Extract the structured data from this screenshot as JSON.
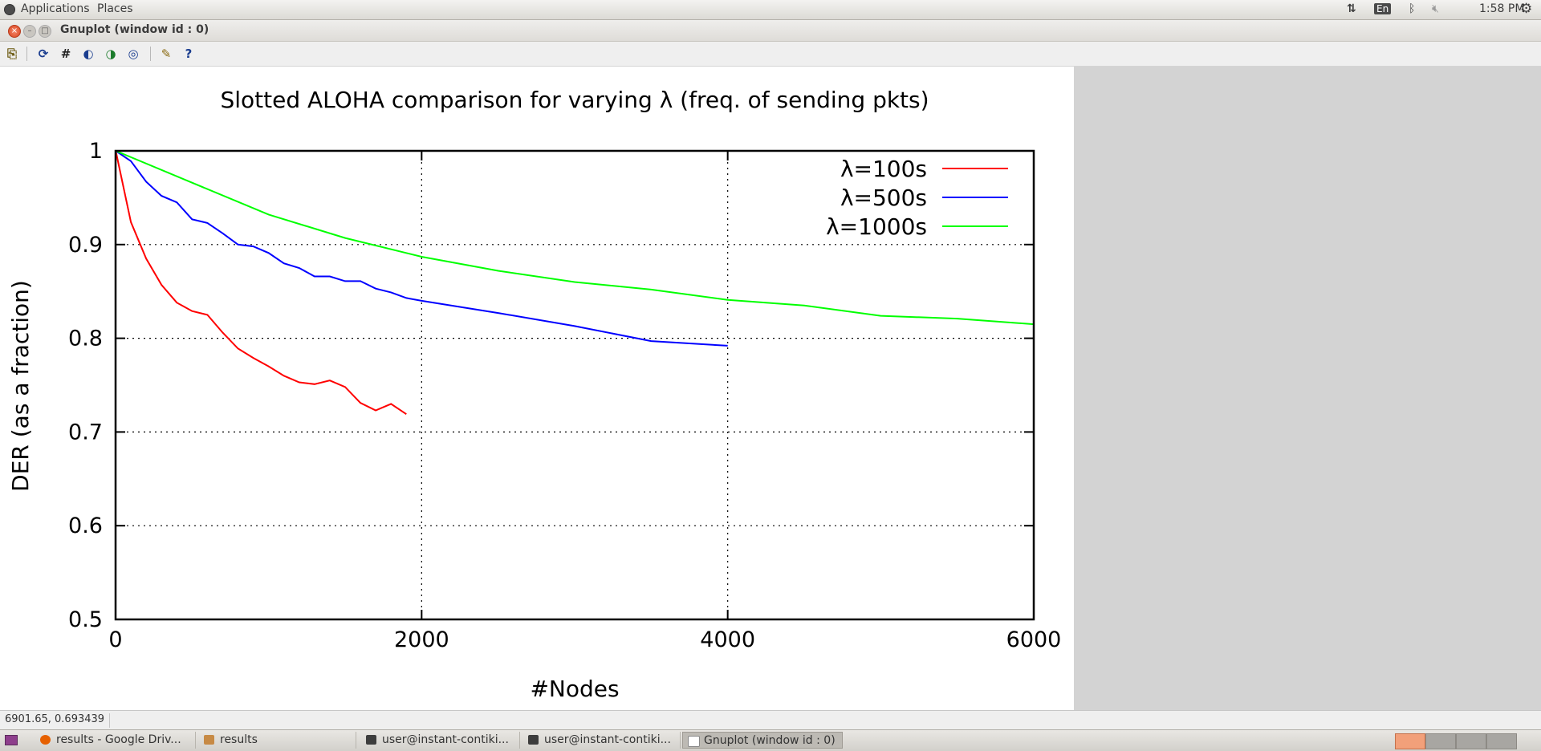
{
  "top_panel": {
    "applications": "Applications",
    "places": "Places",
    "keyboard_layout": "En",
    "clock": "1:58 PM",
    "icons": [
      "network-arrows-icon",
      "bluetooth-icon",
      "volume-muted-icon",
      "gear-icon"
    ]
  },
  "window": {
    "title": "Gnuplot (window id : 0)"
  },
  "toolbar": {
    "icons": [
      "copy-clipboard-icon",
      "replot-icon",
      "grid-icon",
      "zoom-prev-icon",
      "zoom-next-icon",
      "autoscale-icon",
      "options-icon",
      "help-icon"
    ]
  },
  "chart_data": {
    "type": "line",
    "title": "Slotted ALOHA comparison for varying λ (freq. of sending pkts)",
    "xlabel": "#Nodes",
    "ylabel": "DER (as a fraction)",
    "xlim": [
      0,
      6000
    ],
    "ylim": [
      0.5,
      1
    ],
    "x_ticks": [
      "0",
      "2000",
      "4000",
      "6000"
    ],
    "y_ticks": [
      "0.5",
      "0.6",
      "0.7",
      "0.8",
      "0.9",
      "1"
    ],
    "grid": "dotted, major ticks",
    "legend_position": "top-right",
    "series": [
      {
        "name": "λ=100s",
        "color": "#ff0000",
        "x": [
          1,
          100,
          200,
          300,
          400,
          500,
          600,
          700,
          800,
          900,
          1000,
          1100,
          1200,
          1300,
          1400,
          1500,
          1600,
          1700,
          1800,
          1900
        ],
        "y": [
          1.0,
          0.924,
          0.885,
          0.857,
          0.838,
          0.829,
          0.825,
          0.806,
          0.789,
          0.779,
          0.77,
          0.76,
          0.753,
          0.751,
          0.755,
          0.748,
          0.731,
          0.723,
          0.73,
          0.719
        ]
      },
      {
        "name": "λ=500s",
        "color": "#0000ff",
        "x": [
          1,
          100,
          200,
          300,
          400,
          500,
          600,
          700,
          800,
          900,
          1000,
          1100,
          1200,
          1300,
          1400,
          1500,
          1600,
          1700,
          1800,
          1900,
          2000,
          2500,
          3000,
          3500,
          4000
        ],
        "y": [
          1.0,
          0.989,
          0.967,
          0.952,
          0.945,
          0.927,
          0.923,
          0.912,
          0.9,
          0.898,
          0.891,
          0.88,
          0.875,
          0.866,
          0.866,
          0.861,
          0.861,
          0.853,
          0.849,
          0.843,
          0.84,
          0.827,
          0.813,
          0.797,
          0.792
        ]
      },
      {
        "name": "λ=1000s",
        "color": "#00ff00",
        "x": [
          1,
          500,
          1000,
          1500,
          2000,
          2500,
          3000,
          3500,
          4000,
          4500,
          5000,
          5500,
          6000
        ],
        "y": [
          1.0,
          0.966,
          0.932,
          0.907,
          0.887,
          0.872,
          0.86,
          0.852,
          0.841,
          0.835,
          0.824,
          0.821,
          0.815
        ]
      }
    ]
  },
  "status_bar": {
    "coordinates": "6901.65,  0.693439"
  },
  "taskbar": {
    "tasks": [
      {
        "label": "results - Google Driv...",
        "icon": "firefox-icon"
      },
      {
        "label": "results",
        "icon": "file-manager-icon"
      },
      {
        "label": "user@instant-contiki...",
        "icon": "terminal-icon"
      },
      {
        "label": "user@instant-contiki...",
        "icon": "terminal-icon"
      },
      {
        "label": "Gnuplot (window id : 0)",
        "icon": "gnuplot-icon"
      }
    ]
  }
}
